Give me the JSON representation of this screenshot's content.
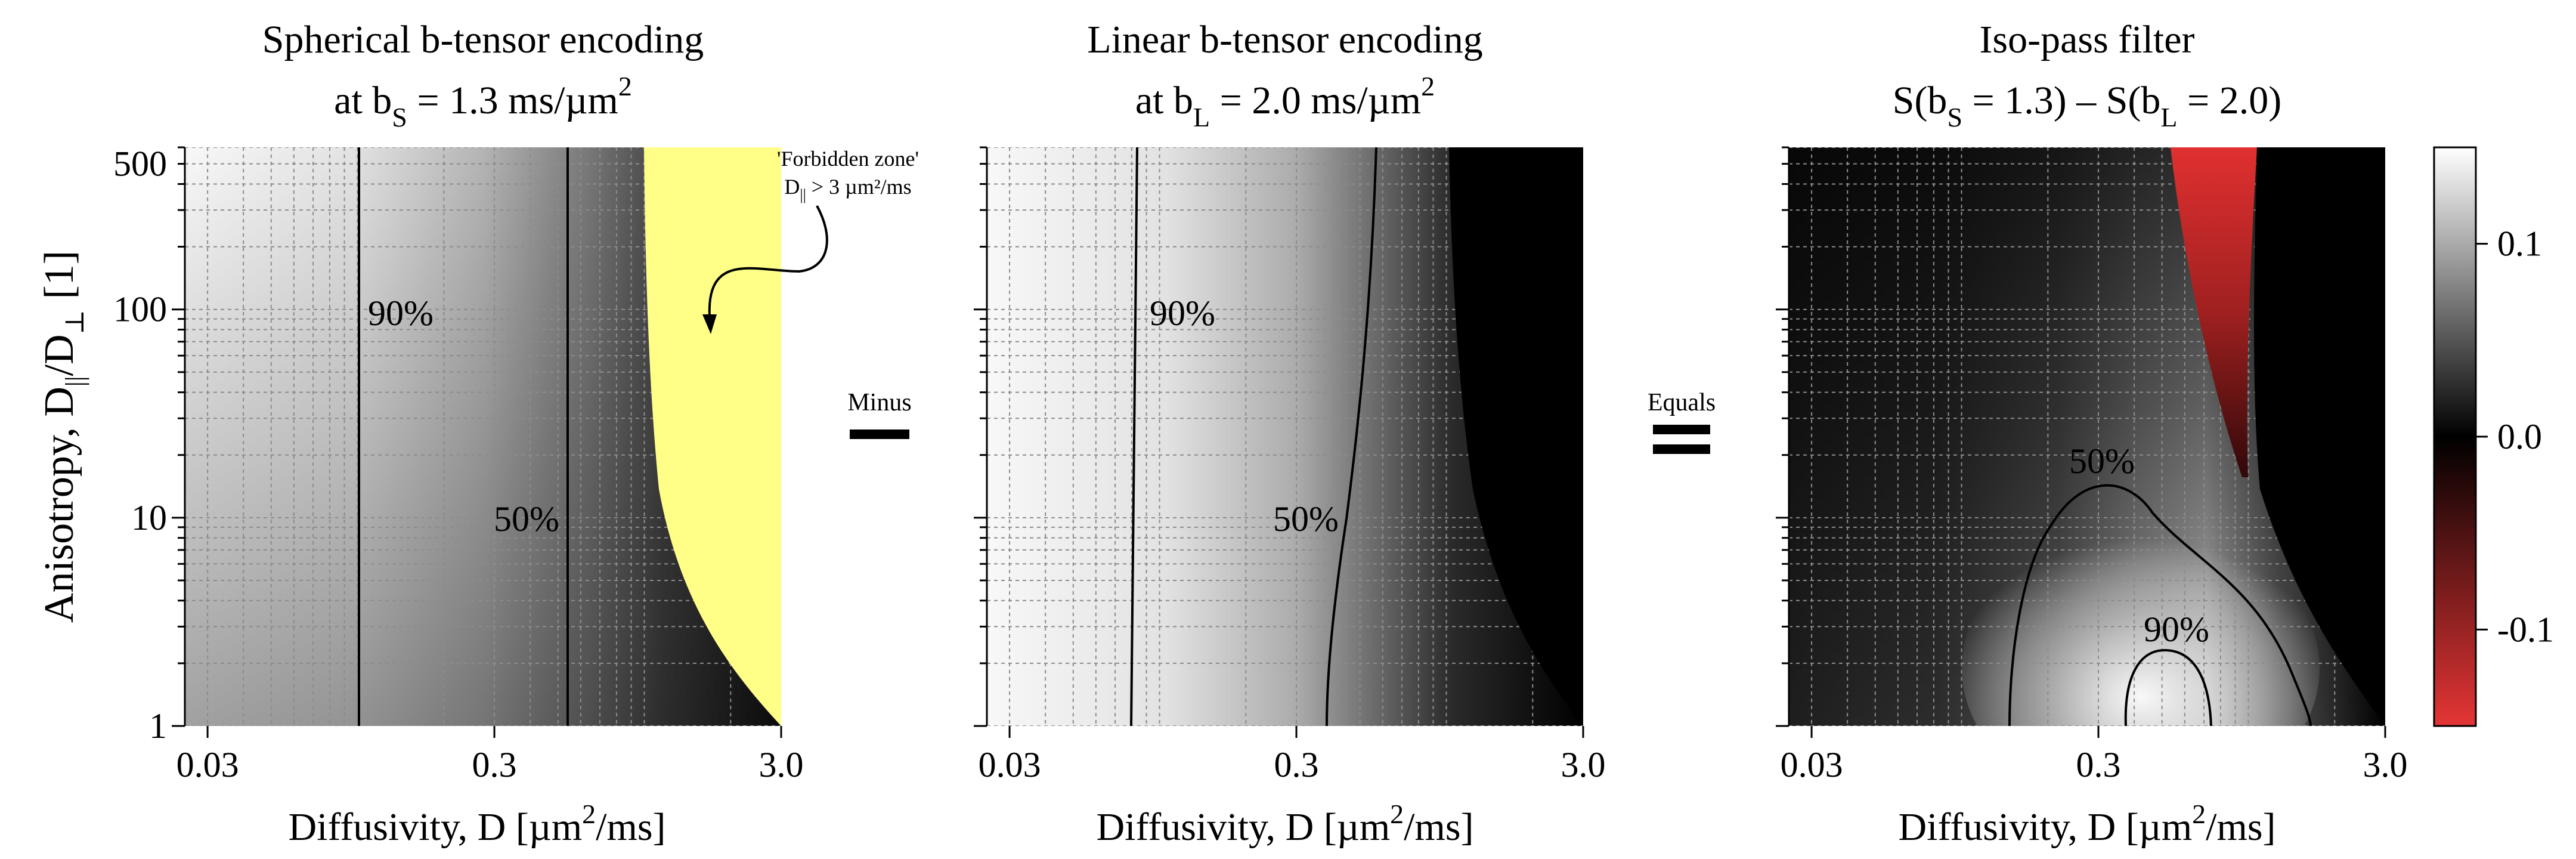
{
  "chart_data": [
    {
      "type": "heatmap",
      "title": {
        "line1": "Spherical b-tensor encoding",
        "line2": "at b",
        "sub": "S",
        "line2_tail": " = 1.3 ms/µm",
        "sup": "2"
      },
      "x_axis": {
        "label": "Diffusivity, D [µm",
        "label_sup": "2",
        "label_tail": "/ms]",
        "scale": "log",
        "range": [
          0.025,
          3.0
        ],
        "ticks": [
          {
            "value": 0.03,
            "label": "0.03"
          },
          {
            "value": 0.3,
            "label": "0.3"
          },
          {
            "value": 3.0,
            "label": "3.0"
          }
        ]
      },
      "y_axis": {
        "label_main": "Anisotropy, D",
        "label_sub1": "||",
        "label_mid": "/D",
        "label_sub2": "⊥",
        "label_tail": " [1]",
        "scale": "log",
        "range": [
          1,
          600
        ],
        "ticks": [
          {
            "value": 1,
            "label": "1"
          },
          {
            "value": 10,
            "label": "10"
          },
          {
            "value": 100,
            "label": "100"
          },
          {
            "value": 500,
            "label": "500"
          }
        ]
      },
      "b_value": 1.3,
      "contours": [
        {
          "level": "90%",
          "label": "90%"
        },
        {
          "level": "50%",
          "label": "50%"
        }
      ],
      "forbidden_zone": {
        "label_line1": "'Forbidden zone'",
        "label_line2_a": "D",
        "label_line2_sub": "||",
        "label_line2_b": " > 3 µm²/ms",
        "color": "#FFFF88"
      }
    },
    {
      "type": "heatmap",
      "title": {
        "line1": "Linear b-tensor encoding",
        "line2": "at b",
        "sub": "L",
        "line2_tail": " = 2.0 ms/µm",
        "sup": "2"
      },
      "x_axis": {
        "label": "Diffusivity, D [µm",
        "label_sup": "2",
        "label_tail": "/ms]",
        "scale": "log",
        "range": [
          0.025,
          3.0
        ],
        "ticks": [
          {
            "value": 0.03,
            "label": "0.03"
          },
          {
            "value": 0.3,
            "label": "0.3"
          },
          {
            "value": 3.0,
            "label": "3.0"
          }
        ]
      },
      "b_value": 2.0,
      "contours": [
        {
          "level": "90%",
          "label": "90%"
        },
        {
          "level": "50%",
          "label": "50%"
        }
      ]
    },
    {
      "type": "heatmap",
      "title": {
        "line1": "Iso-pass filter",
        "line2_a": "S(b",
        "line2_sub1": "S",
        "line2_b": " = 1.3) – S(b",
        "line2_sub2": "L",
        "line2_c": " = 2.0)"
      },
      "x_axis": {
        "label": "Diffusivity, D [µm",
        "label_sup": "2",
        "label_tail": "/ms]",
        "scale": "log",
        "range": [
          0.025,
          3.0
        ],
        "ticks": [
          {
            "value": 0.03,
            "label": "0.03"
          },
          {
            "value": 0.3,
            "label": "0.3"
          },
          {
            "value": 3.0,
            "label": "3.0"
          }
        ]
      },
      "contours": [
        {
          "level": "50%",
          "label": "50%"
        },
        {
          "level": "90%",
          "label": "90%"
        }
      ],
      "colorbar": {
        "range": [
          -0.15,
          0.15
        ],
        "ticks": [
          {
            "value": 0.1,
            "label": "0.1"
          },
          {
            "value": 0.0,
            "label": "0.0"
          },
          {
            "value": -0.1,
            "label": "-0.1"
          }
        ],
        "colors": {
          "max": "#ffffff",
          "mid": "#000000",
          "min": "#e03030"
        }
      }
    }
  ],
  "operators": {
    "minus_label": "Minus",
    "equals_label": "Equals"
  }
}
